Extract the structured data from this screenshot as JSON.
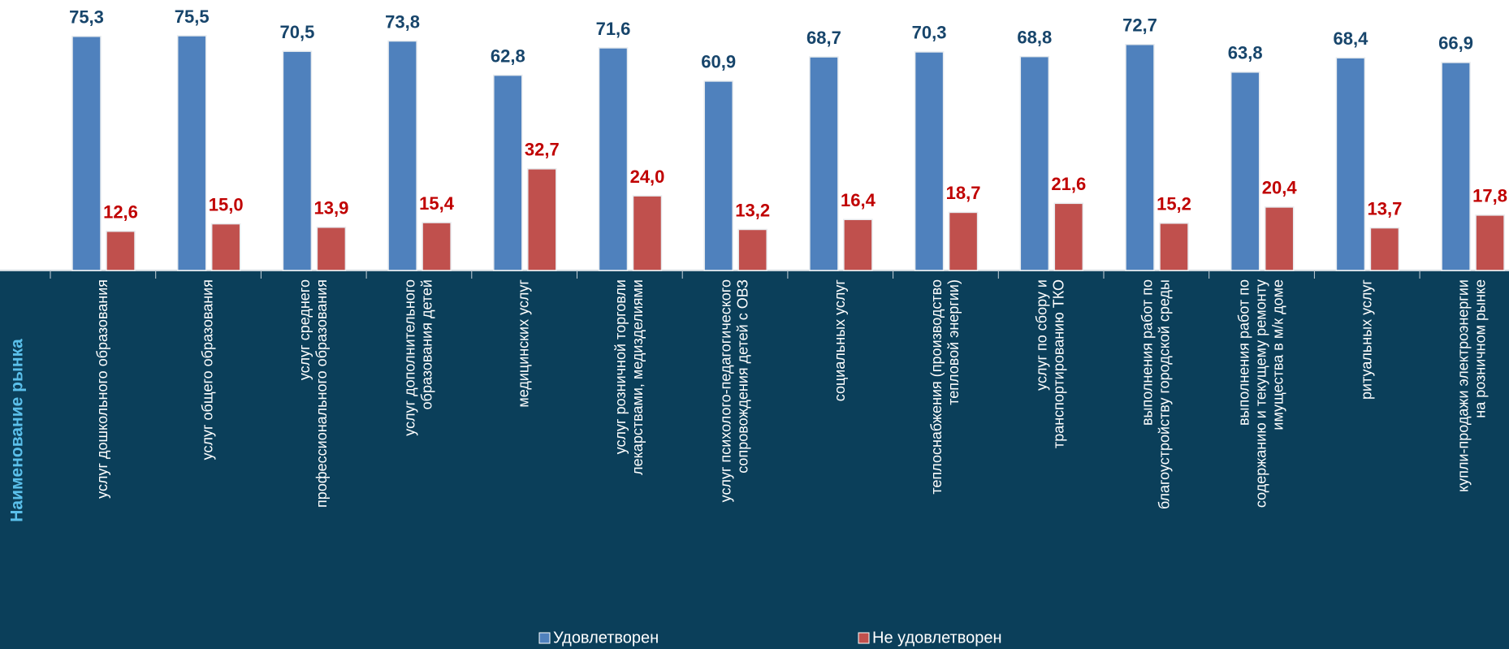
{
  "chart_data": {
    "type": "bar",
    "y_label": "Наименование рынка",
    "categories": [
      "услуг дошкольного образования",
      "услуг общего образования",
      "услуг среднего\nпрофессионального образования",
      "услуг дополнительного\nобразования детей",
      "медицинских услуг",
      "услуг розничной торговли\nлекарствами, медизделиями",
      "услуг психолого-педагогического\nсопровождения детей с ОВЗ",
      "социальных услуг",
      "теплоснабжения (производство\nтепловой энергии)",
      "услуг по сбору и\nтранспортированию ТКО",
      "выполнения работ по\nблагоустройству городской среды",
      "выполнения работ по\nсодержанию и текущему ремонту\nимущества в м/к доме",
      "ритуальных услуг",
      "купли-продажи электроэнергии\nна розничном рынке"
    ],
    "series": [
      {
        "name": "Удовлетворен",
        "color": "#4f81bd",
        "label_color": "#17456b",
        "values": [
          75.3,
          75.5,
          70.5,
          73.8,
          62.8,
          71.6,
          60.9,
          68.7,
          70.3,
          68.8,
          72.7,
          63.8,
          68.4,
          66.9
        ],
        "value_labels": [
          "75,3",
          "75,5",
          "70,5",
          "73,8",
          "62,8",
          "71,6",
          "60,9",
          "68,7",
          "70,3",
          "68,8",
          "72,7",
          "63,8",
          "68,4",
          "66,9"
        ]
      },
      {
        "name": "Не удовлетворен",
        "color": "#c0504d",
        "label_color": "#c00000",
        "values": [
          12.6,
          15.0,
          13.9,
          15.4,
          32.7,
          24.0,
          13.2,
          16.4,
          18.7,
          21.6,
          15.2,
          20.4,
          13.7,
          17.8
        ],
        "value_labels": [
          "12,6",
          "15,0",
          "13,9",
          "15,4",
          "32,7",
          "24,0",
          "13,2",
          "16,4",
          "18,7",
          "21,6",
          "15,2",
          "20,4",
          "13,7",
          "17,8"
        ]
      }
    ],
    "ylim": [
      0,
      87
    ]
  }
}
